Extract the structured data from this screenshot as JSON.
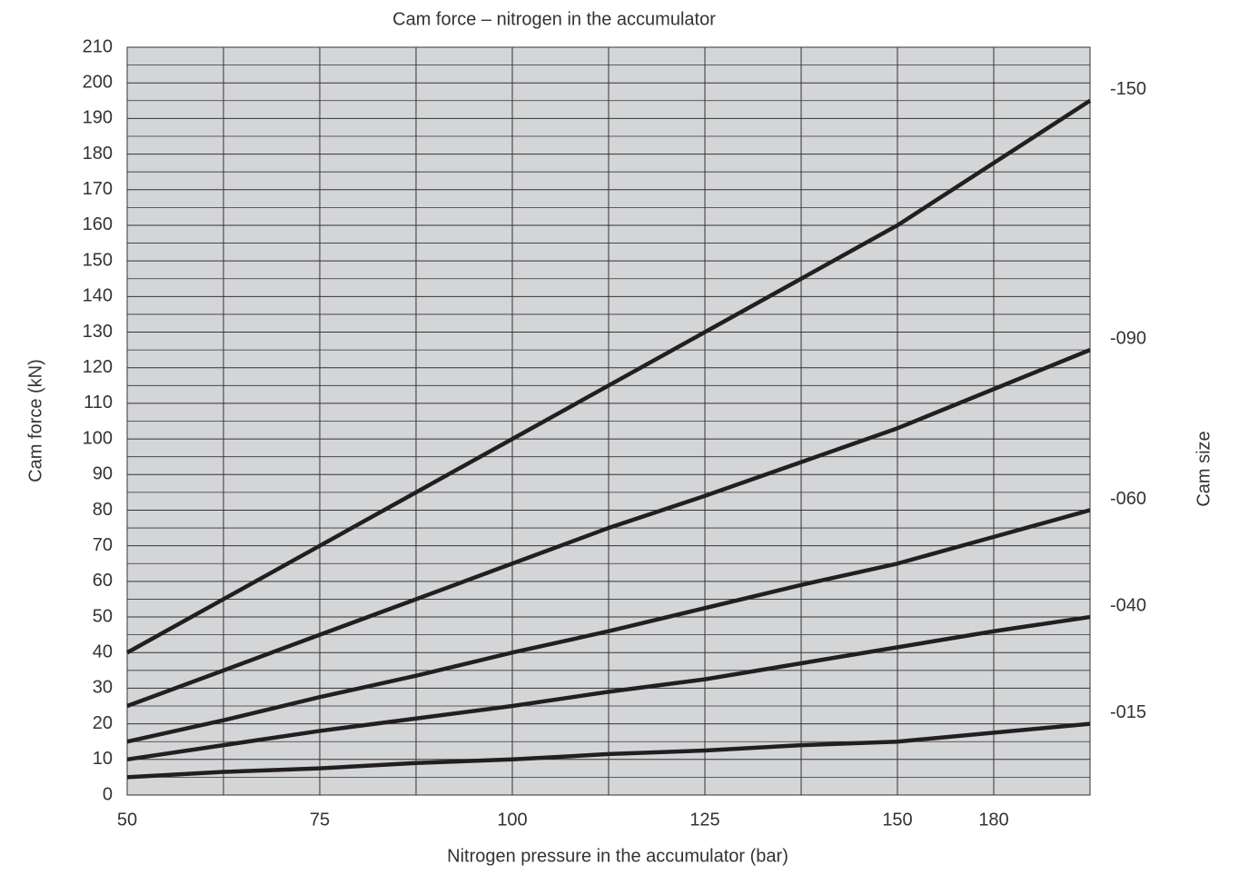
{
  "chart_data": {
    "type": "line",
    "title": "Cam force – nitrogen in the accumulator",
    "x_label": "Nitrogen pressure in the accumulator (bar)",
    "y_label": "Cam force (kN)",
    "y2_label": "Cam size",
    "categories": [
      "50",
      null,
      "75",
      null,
      "100",
      null,
      "125",
      null,
      "150",
      "180",
      null
    ],
    "series": [
      {
        "name": "-150",
        "color": "#231f20",
        "values": [
          40,
          55,
          70,
          85,
          100,
          115,
          130,
          145,
          160,
          177.5,
          195
        ]
      },
      {
        "name": "-090",
        "color": "#231f20",
        "values": [
          25,
          35,
          45,
          55,
          65,
          75,
          84,
          93.5,
          103,
          114,
          125
        ]
      },
      {
        "name": "-060",
        "color": "#231f20",
        "values": [
          15,
          21,
          27.5,
          33.5,
          40,
          46,
          52.5,
          59,
          65,
          72.5,
          80
        ]
      },
      {
        "name": "-040",
        "color": "#231f20",
        "values": [
          10,
          14,
          18,
          21.5,
          25,
          29,
          32.5,
          37,
          41.5,
          46,
          50
        ]
      },
      {
        "name": "-015",
        "color": "#231f20",
        "values": [
          5,
          6.5,
          7.5,
          9,
          10,
          11.5,
          12.5,
          14,
          15,
          17.5,
          20
        ]
      }
    ],
    "ylim": [
      0,
      210
    ],
    "yticks": [
      0,
      10,
      20,
      30,
      40,
      50,
      60,
      70,
      80,
      90,
      100,
      110,
      120,
      130,
      140,
      150,
      160,
      170,
      180,
      190,
      200,
      210
    ],
    "grid": true
  }
}
